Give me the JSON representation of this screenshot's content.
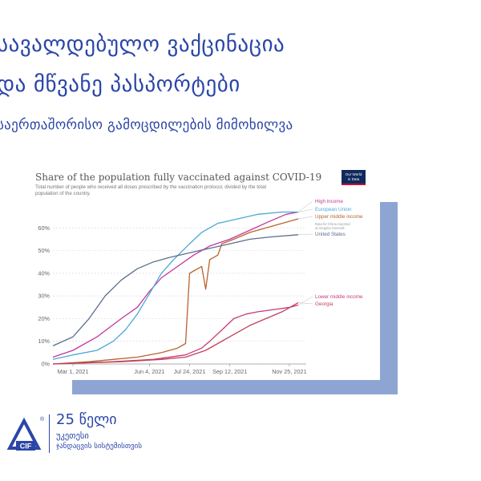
{
  "slide": {
    "title_line1": "სავალდებულო ვაქცინაცია",
    "title_line2": "და მწვანე პასპორტები",
    "subtitle": "საერთაშორისო გამოცდილების მიმოხილვა"
  },
  "footer": {
    "logo_text": "CIF",
    "logo_mark": "®",
    "years": "25 წელი",
    "line2": "უკეთესი",
    "line3": "ჯანდაცვის სისტემისთვის"
  },
  "chart_data": {
    "type": "line",
    "title": "Share of the population fully vaccinated against COVID-19",
    "subtitle_lines": [
      "Total number of people who received all doses prescribed by the vaccination protocol, divided by the total",
      "population of the country."
    ],
    "source_badge": [
      "Our World",
      "in Data"
    ],
    "x_tick_labels": [
      "Mar 1, 2021",
      "Jun 4, 2021",
      "Jul 24, 2021",
      "Sep 12, 2021",
      "Nov 25, 2021"
    ],
    "x_tick_days": [
      0,
      95,
      145,
      195,
      269
    ],
    "x_range_days": [
      -25,
      290
    ],
    "ylim": [
      0,
      70
    ],
    "y_ticks": [
      0,
      10,
      20,
      30,
      40,
      50,
      60
    ],
    "y_tick_labels": [
      "0%",
      "10%",
      "20%",
      "30%",
      "40%",
      "50%",
      "60%"
    ],
    "grid": true,
    "legend_placement": "right, end of lines",
    "series": [
      {
        "name": "High income",
        "color": "#c2389a",
        "points": [
          [
            -25,
            3
          ],
          [
            0,
            6
          ],
          [
            30,
            12
          ],
          [
            60,
            20
          ],
          [
            80,
            25
          ],
          [
            95,
            32
          ],
          [
            110,
            38
          ],
          [
            130,
            43
          ],
          [
            150,
            48
          ],
          [
            170,
            52
          ],
          [
            195,
            55
          ],
          [
            220,
            59
          ],
          [
            245,
            63
          ],
          [
            265,
            66
          ],
          [
            280,
            67
          ]
        ]
      },
      {
        "name": "European Union",
        "color": "#4aa8d8",
        "points": [
          [
            -25,
            2
          ],
          [
            0,
            4
          ],
          [
            30,
            6
          ],
          [
            50,
            10
          ],
          [
            65,
            15
          ],
          [
            80,
            22
          ],
          [
            95,
            31
          ],
          [
            110,
            40
          ],
          [
            125,
            46
          ],
          [
            145,
            53
          ],
          [
            160,
            58
          ],
          [
            180,
            62
          ],
          [
            205,
            64
          ],
          [
            230,
            66
          ],
          [
            260,
            67
          ],
          [
            280,
            67
          ]
        ]
      },
      {
        "name": "Upper middle income",
        "color": "#b8632c",
        "points": [
          [
            -25,
            0
          ],
          [
            20,
            1
          ],
          [
            50,
            2
          ],
          [
            80,
            3
          ],
          [
            110,
            5
          ],
          [
            130,
            7
          ],
          [
            140,
            9
          ],
          [
            145,
            40
          ],
          [
            150,
            41
          ],
          [
            160,
            43
          ],
          [
            165,
            33
          ],
          [
            170,
            46
          ],
          [
            180,
            48
          ],
          [
            185,
            53
          ],
          [
            200,
            55
          ],
          [
            220,
            58
          ],
          [
            240,
            60
          ],
          [
            260,
            62
          ],
          [
            280,
            64
          ]
        ]
      },
      {
        "name": "United States",
        "color": "#5c6f8e",
        "points": [
          [
            -25,
            8
          ],
          [
            0,
            12
          ],
          [
            20,
            20
          ],
          [
            40,
            30
          ],
          [
            60,
            37
          ],
          [
            80,
            42
          ],
          [
            100,
            45
          ],
          [
            120,
            47
          ],
          [
            145,
            49
          ],
          [
            170,
            51
          ],
          [
            195,
            53
          ],
          [
            220,
            55
          ],
          [
            245,
            56
          ],
          [
            280,
            57
          ]
        ]
      },
      {
        "name": "Lower middle income",
        "color": "#c83a77",
        "points": [
          [
            -25,
            0
          ],
          [
            50,
            1
          ],
          [
            100,
            2
          ],
          [
            140,
            4
          ],
          [
            160,
            7
          ],
          [
            170,
            10
          ],
          [
            185,
            15
          ],
          [
            200,
            20
          ],
          [
            215,
            22
          ],
          [
            230,
            23
          ],
          [
            250,
            24
          ],
          [
            270,
            25
          ],
          [
            280,
            26
          ]
        ]
      },
      {
        "name": "Georgia",
        "color": "#c0435a",
        "points": [
          [
            -25,
            0
          ],
          [
            60,
            1
          ],
          [
            110,
            2
          ],
          [
            140,
            3
          ],
          [
            165,
            6
          ],
          [
            180,
            9
          ],
          [
            200,
            13
          ],
          [
            220,
            17
          ],
          [
            240,
            20
          ],
          [
            260,
            23
          ],
          [
            280,
            27
          ]
        ]
      }
    ],
    "legend": [
      {
        "label": "High income",
        "color": "#c2389a"
      },
      {
        "label": "European Union",
        "color": "#4aa8d8"
      },
      {
        "label": "Upper middle income",
        "color": "#b8632c"
      },
      {
        "label": "United States",
        "color": "#5c6f8e"
      },
      {
        "label": "Lower middle income",
        "color": "#c83a77"
      },
      {
        "label": "Georgia",
        "color": "#c0435a"
      }
    ],
    "annotation": [
      "Data for China reported",
      "at irregular intervals"
    ]
  }
}
